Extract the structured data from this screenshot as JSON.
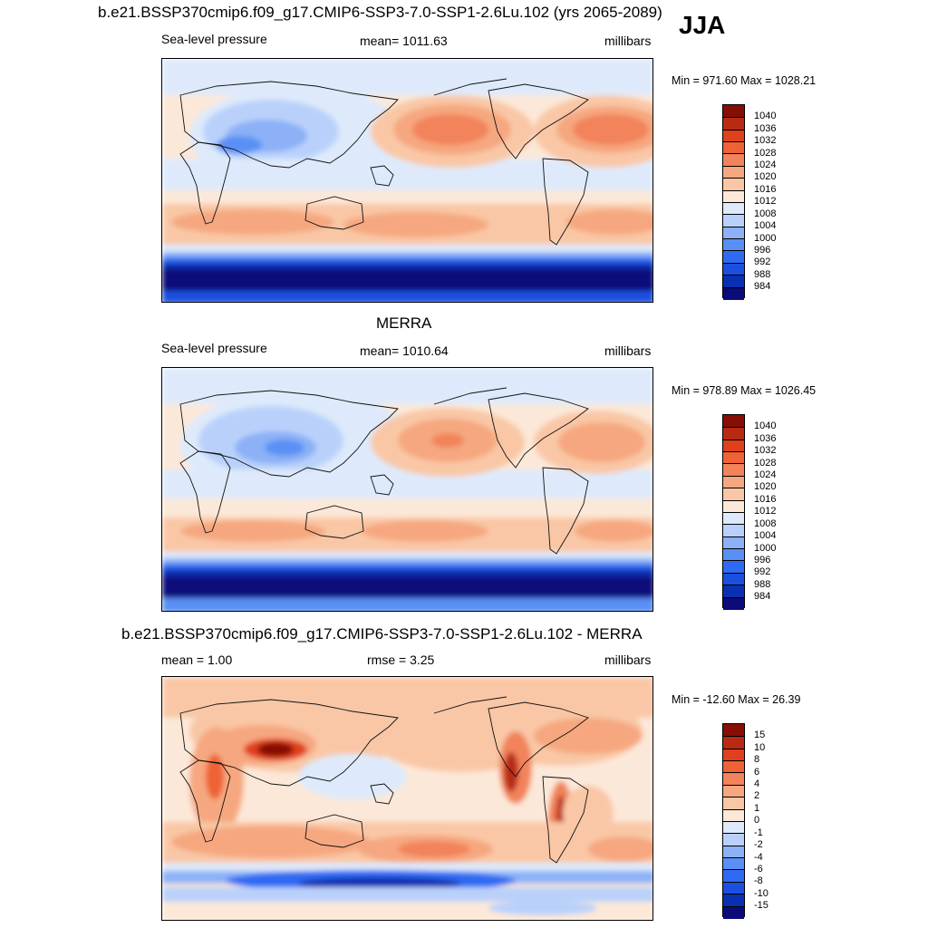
{
  "season": "JJA",
  "colors": {
    "abs": [
      "#0b0b7a",
      "#0a2fb0",
      "#1a4fe0",
      "#2f6bf2",
      "#5a90f5",
      "#8cb1f7",
      "#b9d1fa",
      "#deeafb",
      "#fce8d8",
      "#f9c7a6",
      "#f6a77f",
      "#f2835a",
      "#ef6236",
      "#e0401c",
      "#b82a12",
      "#870e05"
    ],
    "diff": [
      "#0b0b7a",
      "#0a2fb0",
      "#1a4fe0",
      "#2f6bf2",
      "#5a90f5",
      "#8cb1f7",
      "#b9d1fa",
      "#deeafb",
      "#fce8d8",
      "#f9c7a6",
      "#f6a77f",
      "#f2835a",
      "#ef6236",
      "#e0401c",
      "#b82a12",
      "#870e05"
    ]
  },
  "panels": [
    {
      "title": "b.e21.BSSP370cmip6.f09_g17.CMIP6-SSP3-7.0-SSP1-2.6Lu.102 (yrs 2065-2089)",
      "left_label": "Sea-level pressure",
      "center_label": "mean= 1011.63",
      "right_label": "millibars",
      "minmax": "Min = 971.60 Max = 1028.21",
      "colorbar_labels": [
        "1040",
        "1036",
        "1032",
        "1028",
        "1024",
        "1020",
        "1016",
        "1012",
        "1008",
        "1004",
        "1000",
        "996",
        "992",
        "988",
        "984"
      ]
    },
    {
      "title": "MERRA",
      "left_label": "Sea-level pressure",
      "center_label": "mean= 1010.64",
      "right_label": "millibars",
      "minmax": "Min = 978.89 Max = 1026.45",
      "colorbar_labels": [
        "1040",
        "1036",
        "1032",
        "1028",
        "1024",
        "1020",
        "1016",
        "1012",
        "1008",
        "1004",
        "1000",
        "996",
        "992",
        "988",
        "984"
      ]
    },
    {
      "title": "b.e21.BSSP370cmip6.f09_g17.CMIP6-SSP3-7.0-SSP1-2.6Lu.102 - MERRA",
      "left_label": "mean =   1.00",
      "center_label": "rmse =   3.25",
      "right_label": "millibars",
      "minmax": "Min = -12.60 Max =  26.39",
      "colorbar_labels": [
        "15",
        "10",
        "8",
        "6",
        "4",
        "2",
        "1",
        "0",
        "-1",
        "-2",
        "-4",
        "-6",
        "-8",
        "-10",
        "-15"
      ]
    }
  ]
}
